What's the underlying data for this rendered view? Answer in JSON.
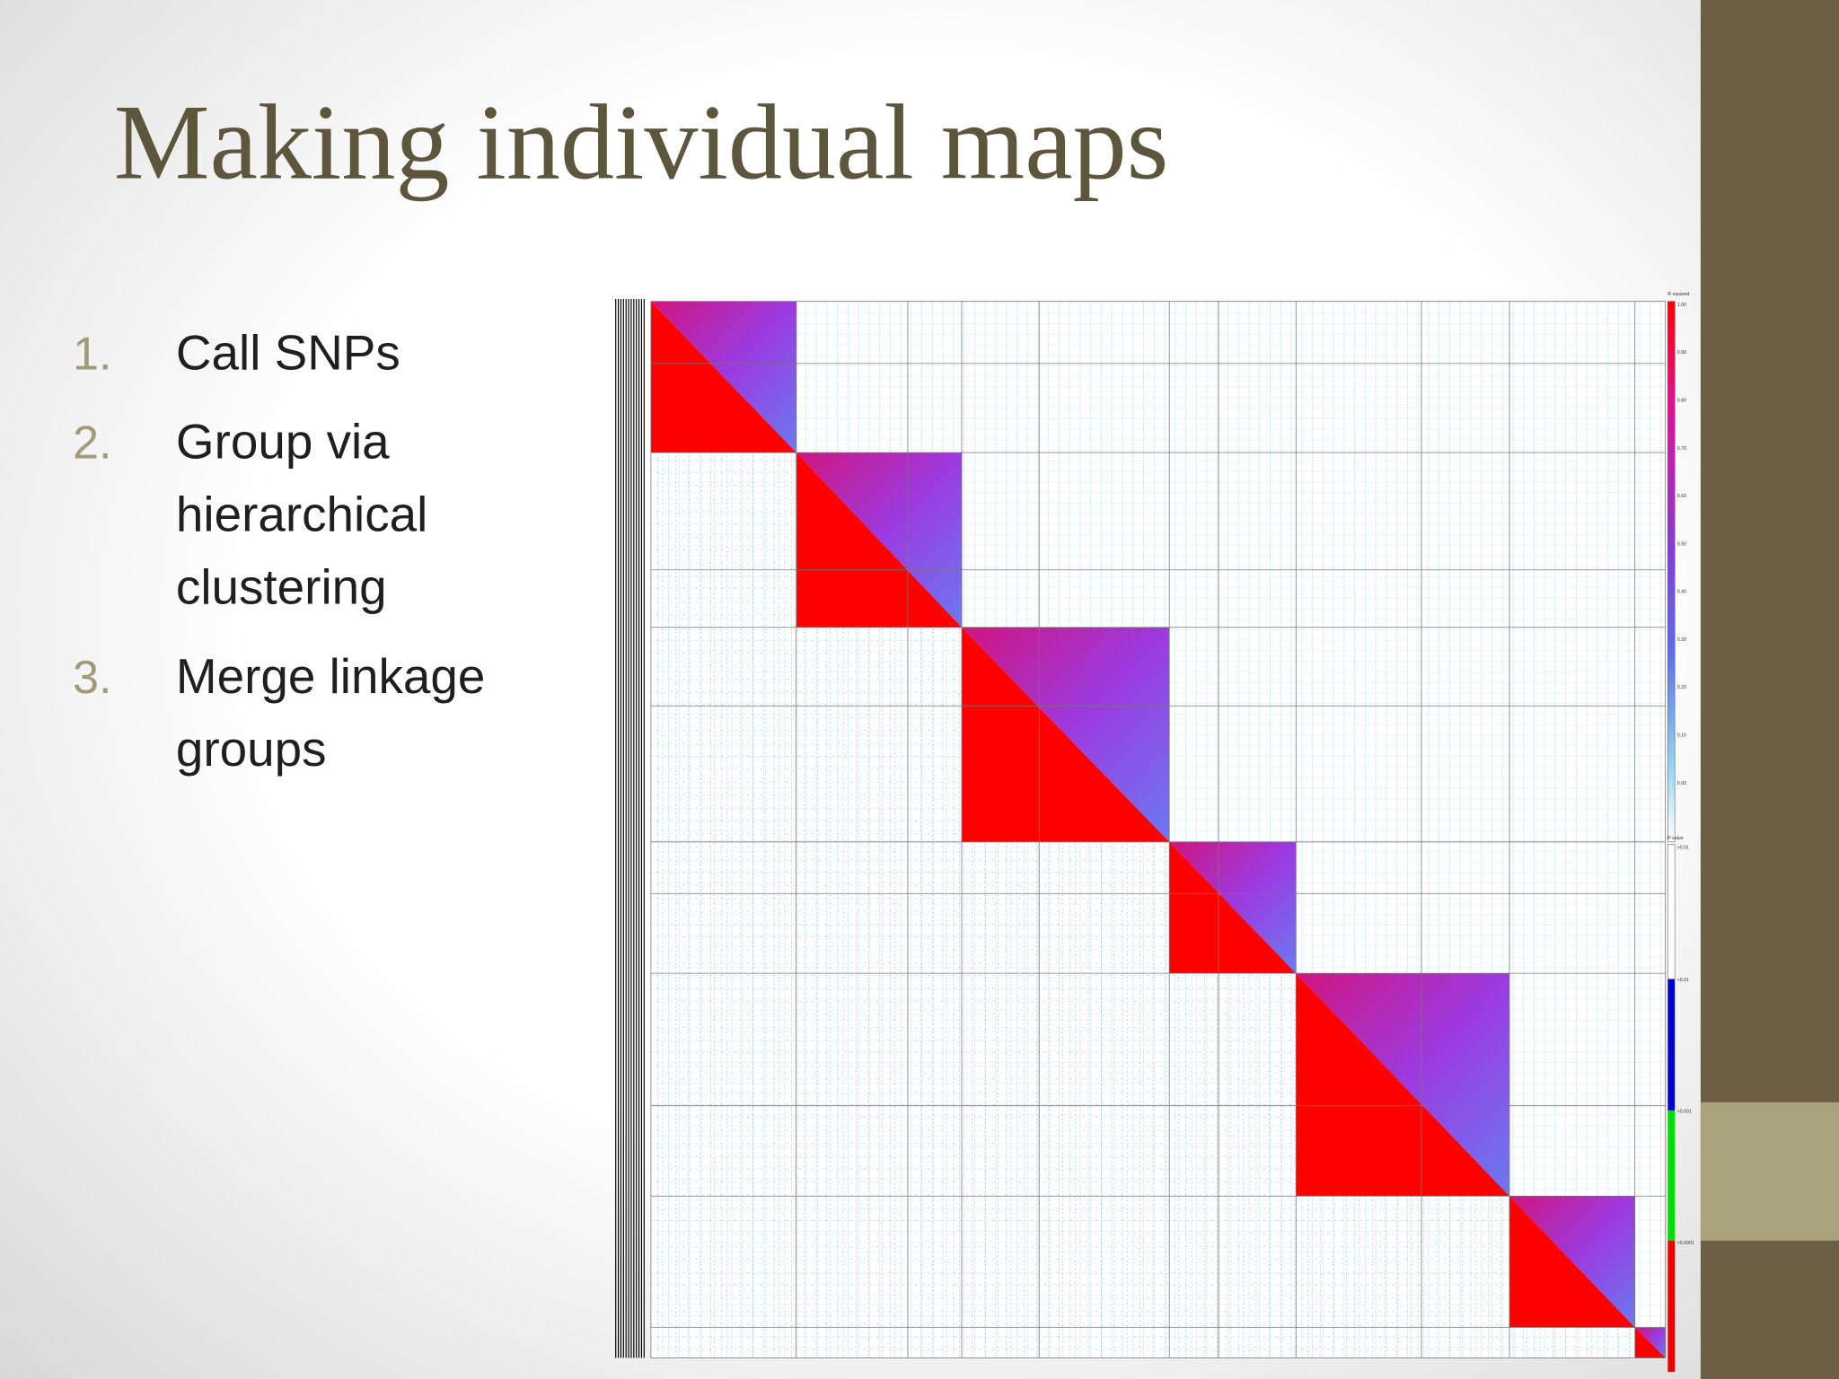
{
  "header": {
    "title": "Making individual maps"
  },
  "list": [
    {
      "number": "1.",
      "lines": [
        "Call SNPs"
      ]
    },
    {
      "number": "2.",
      "lines": [
        "Group via",
        "hierarchical",
        "clustering"
      ]
    },
    {
      "number": "3.",
      "lines": [
        "Merge linkage",
        "groups"
      ]
    }
  ],
  "legend": {
    "r_squared": {
      "title": "R squared",
      "labels": [
        "1.00",
        "0.90",
        "0.80",
        "0.70",
        "0.60",
        "0.50",
        "0.40",
        "0.30",
        "0.20",
        "0.10",
        "0.00"
      ]
    },
    "p_value": {
      "title": "P value",
      "labels": [
        ">0.01",
        "<0.01",
        "<0.001",
        "<0.0001"
      ]
    }
  }
}
